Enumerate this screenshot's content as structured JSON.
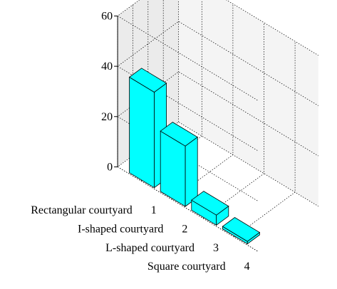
{
  "chart_data": {
    "type": "bar",
    "title": "",
    "xlabel": "",
    "ylabel": "",
    "ylim": [
      0,
      60
    ],
    "yticks": [
      0,
      20,
      40,
      60
    ],
    "categories": [
      "Rectangular courtyard",
      "I-shaped courtyard",
      "L-shaped courtyard",
      "Square courtyard"
    ],
    "category_indices": [
      "1",
      "2",
      "3",
      "4"
    ],
    "values": [
      38,
      24,
      4,
      1
    ],
    "grid": true,
    "bar_color": "#00FFFF",
    "pane_color": "#EBEBEB"
  }
}
